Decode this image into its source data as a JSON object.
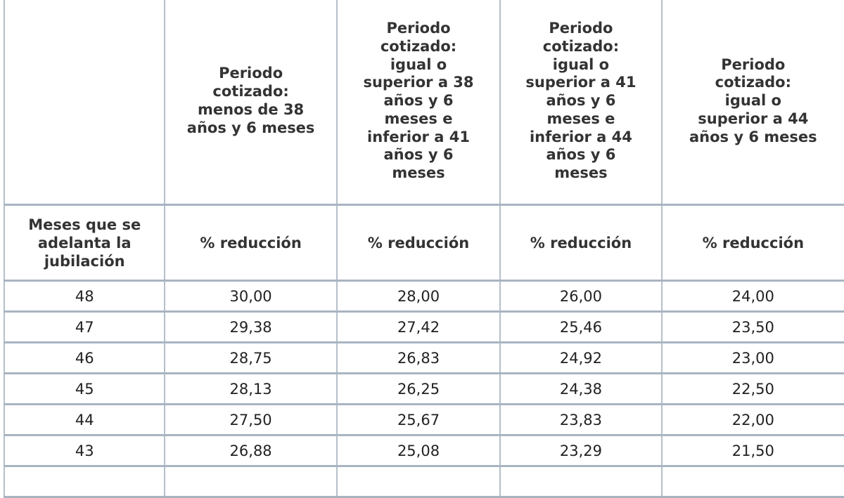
{
  "table": {
    "headers": [
      "",
      "Periodo cotizado: menos de 38 años y 6 meses",
      "Periodo cotizado: igual o superior a 38 años y 6 meses e inferior a 41 años y 6 meses",
      "Periodo cotizado: igual o superior a 41 años y 6 meses e inferior a 44 años y 6 meses",
      "Periodo cotizado: igual o superior a 44 años y 6 meses"
    ],
    "header_lines": [
      [],
      [
        "Periodo",
        "cotizado:",
        "menos de 38",
        "años y 6 meses"
      ],
      [
        "Periodo",
        "cotizado:",
        "igual o",
        "superior a 38",
        "años y 6",
        "meses e",
        "inferior a 41",
        "años y 6",
        "meses"
      ],
      [
        "Periodo",
        "cotizado:",
        "igual o",
        "superior a 41",
        "años y 6",
        "meses e",
        "inferior a 44",
        "años y 6",
        "meses"
      ],
      [
        "Periodo",
        "cotizado:",
        "igual o",
        "superior a 44",
        "años y 6 meses"
      ]
    ],
    "subheaders": [
      "Meses que se adelanta la jubilación",
      "% reducción",
      "% reducción",
      "% reducción",
      "% reducción"
    ],
    "subheader_lines": [
      [
        "Meses que se",
        "adelanta la",
        "jubilación"
      ]
    ],
    "rows": [
      [
        "48",
        "30,00",
        "28,00",
        "26,00",
        "24,00"
      ],
      [
        "47",
        "29,38",
        "27,42",
        "25,46",
        "23,50"
      ],
      [
        "46",
        "28,75",
        "26,83",
        "24,92",
        "23,00"
      ],
      [
        "45",
        "28,13",
        "26,25",
        "24,38",
        "22,50"
      ],
      [
        "44",
        "27,50",
        "25,67",
        "23,83",
        "22,00"
      ],
      [
        "43",
        "26,88",
        "25,08",
        "23,29",
        "21,50"
      ]
    ]
  },
  "colors": {
    "border": "#a9b4c2",
    "text": "#333333",
    "background": "#ffffff"
  }
}
